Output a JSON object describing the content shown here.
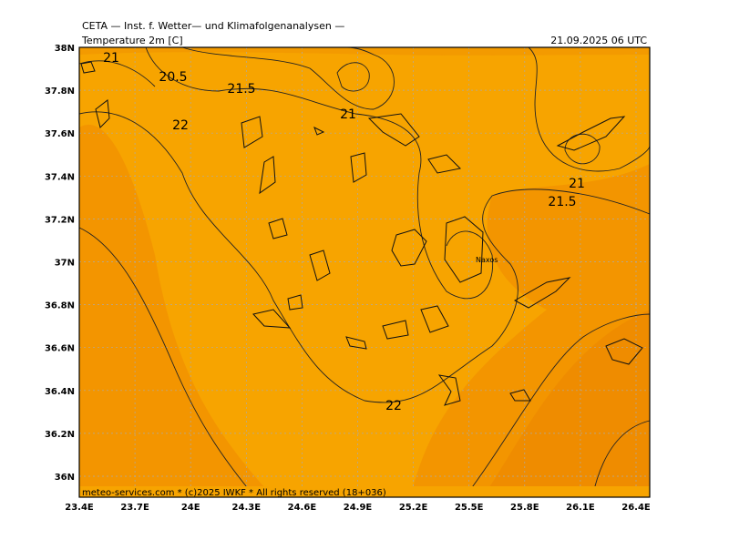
{
  "header": {
    "source": "CETA — Inst. f. Wetter— und Klimafolgenanalysen —",
    "title": "Temperature 2m [C]",
    "date": "21.09.2025 06 UTC",
    "footer": "meteo-services.com * (c)2025 IWKF * All rights reserved (18+036)"
  },
  "map": {
    "lat_ticks": [
      "38N",
      "37.8N",
      "37.6N",
      "37.4N",
      "37.2N",
      "37N",
      "36.8N",
      "36.6N",
      "36.4N",
      "36.2N",
      "36N"
    ],
    "lon_ticks": [
      "23.4E",
      "23.7E",
      "24E",
      "24.3E",
      "24.6E",
      "24.9E",
      "25.2E",
      "25.5E",
      "25.8E",
      "26.1E",
      "26.4E"
    ],
    "contour_labels": [
      21,
      20.5,
      21.5,
      22,
      21,
      21,
      21.5,
      22
    ],
    "place": "Naxos"
  }
}
